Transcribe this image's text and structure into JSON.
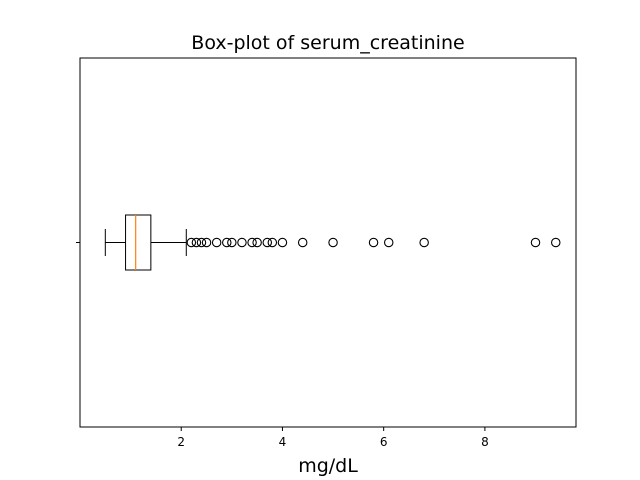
{
  "chart_data": {
    "type": "boxplot",
    "orientation": "horizontal",
    "title": "Box-plot of serum_creatinine",
    "xlabel": "mg/dL",
    "ylabel": "",
    "xlim": [
      0.0,
      9.8
    ],
    "xticks": [
      2,
      4,
      6,
      8
    ],
    "xtick_labels": [
      "2",
      "4",
      "6",
      "8"
    ],
    "yticks": [
      1
    ],
    "ytick_labels": [
      ""
    ],
    "grid": false,
    "box": {
      "whisker_low": 0.5,
      "q1": 0.9,
      "median": 1.1,
      "q3": 1.4,
      "whisker_high": 2.1
    },
    "outliers": [
      2.2,
      2.3,
      2.4,
      2.5,
      2.7,
      2.9,
      3.0,
      3.2,
      3.4,
      3.5,
      3.7,
      3.8,
      4.0,
      4.4,
      5.0,
      5.8,
      6.1,
      6.8,
      9.0,
      9.4
    ],
    "colors": {
      "box": "#000000",
      "median": "#ff7f0e",
      "outlier": "#000000"
    }
  }
}
